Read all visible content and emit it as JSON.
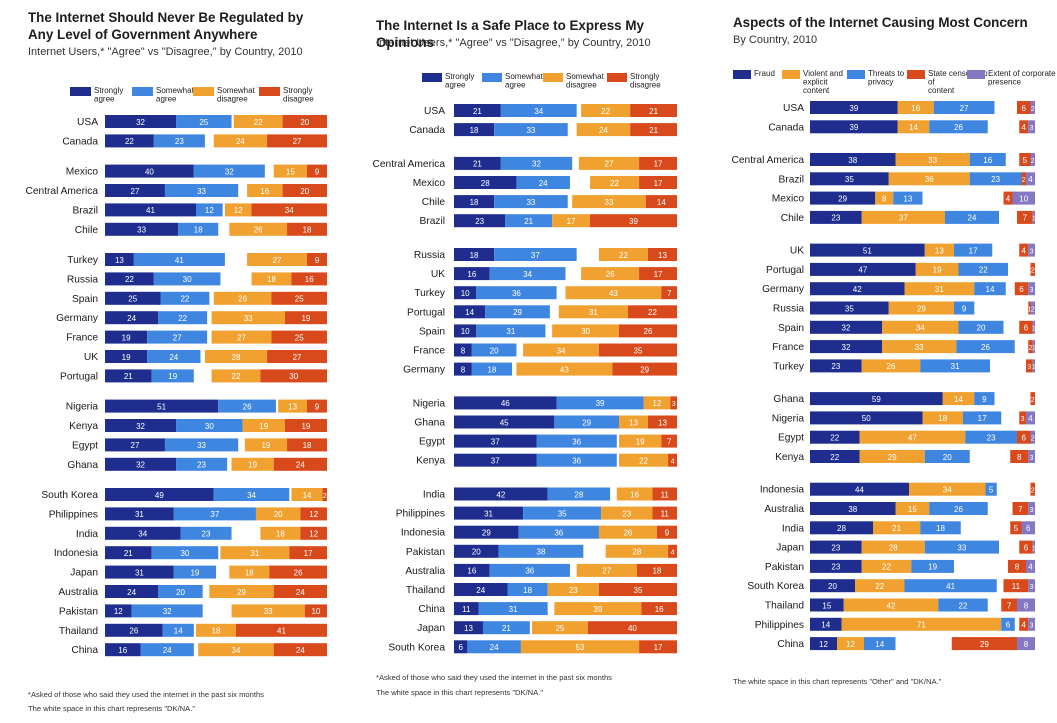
{
  "colors": {
    "strongly_agree": "#1f2d8f",
    "somewhat_agree": "#3f86e0",
    "somewhat_disagree": "#f1a130",
    "strongly_disagree": "#d84a1b",
    "fraud": "#1f2d8f",
    "violent": "#f1a130",
    "privacy": "#3f86e0",
    "censorship": "#d84a1b",
    "corporate": "#8577c2"
  },
  "chart_data": [
    {
      "type": "bar",
      "title": "The Internet Should Never Be Regulated by Any Level of Government Anywhere",
      "subtitle": "Internet Users,* \"Agree\" vs \"Disagree,\" by Country, 2010",
      "legend": [
        "Strongly agree",
        "Somewhat agree",
        "Somewhat disagree",
        "Strongly disagree"
      ],
      "footnotes": [
        "*Asked of those who said they used the internet in the past six months",
        "The white space in this chart represents \"DK/NA.\""
      ],
      "groups": [
        [
          [
            "USA",
            [
              32,
              25,
              22,
              20
            ]
          ],
          [
            "Canada",
            [
              22,
              23,
              24,
              27
            ]
          ]
        ],
        [
          [
            "Mexico",
            [
              40,
              32,
              15,
              9
            ]
          ],
          [
            "Central America",
            [
              27,
              33,
              16,
              20
            ]
          ],
          [
            "Brazil",
            [
              41,
              12,
              12,
              34
            ]
          ],
          [
            "Chile",
            [
              33,
              18,
              26,
              18
            ]
          ]
        ],
        [
          [
            "Turkey",
            [
              13,
              41,
              27,
              9
            ]
          ],
          [
            "Russia",
            [
              22,
              30,
              18,
              16
            ]
          ],
          [
            "Spain",
            [
              25,
              22,
              26,
              25
            ]
          ],
          [
            "Germany",
            [
              24,
              22,
              33,
              19
            ]
          ],
          [
            "France",
            [
              19,
              27,
              27,
              25
            ]
          ],
          [
            "UK",
            [
              19,
              24,
              28,
              27
            ]
          ],
          [
            "Portugal",
            [
              21,
              19,
              22,
              30
            ]
          ]
        ],
        [
          [
            "Nigeria",
            [
              51,
              26,
              13,
              9
            ]
          ],
          [
            "Kenya",
            [
              32,
              30,
              19,
              19
            ]
          ],
          [
            "Egypt",
            [
              27,
              33,
              19,
              18
            ]
          ],
          [
            "Ghana",
            [
              32,
              23,
              19,
              24
            ]
          ]
        ],
        [
          [
            "South Korea",
            [
              49,
              34,
              14,
              2
            ]
          ],
          [
            "Philippines",
            [
              31,
              37,
              20,
              12
            ]
          ],
          [
            "India",
            [
              34,
              23,
              18,
              12
            ]
          ],
          [
            "Indonesia",
            [
              21,
              30,
              31,
              17
            ]
          ],
          [
            "Japan",
            [
              31,
              19,
              18,
              26
            ]
          ],
          [
            "Australia",
            [
              24,
              20,
              29,
              24
            ]
          ],
          [
            "Pakistan",
            [
              12,
              32,
              33,
              10
            ]
          ],
          [
            "Thailand",
            [
              26,
              14,
              18,
              41
            ]
          ],
          [
            "China",
            [
              16,
              24,
              34,
              24
            ]
          ]
        ]
      ]
    },
    {
      "type": "bar",
      "title": "The Internet Is a Safe Place to Express My Opinions",
      "subtitle": "Internet Users,* \"Agree\" vs \"Disagree,\" by Country, 2010",
      "legend": [
        "Strongly agree",
        "Somewhat agree",
        "Somewhat disagree",
        "Strongly disagree"
      ],
      "footnotes": [
        "*Asked of those who said they used the internet in the past six months",
        "The white space in this chart represents \"DK/NA.\""
      ],
      "groups": [
        [
          [
            "USA",
            [
              21,
              34,
              22,
              21
            ]
          ],
          [
            "Canada",
            [
              18,
              33,
              24,
              21
            ]
          ]
        ],
        [
          [
            "Central America",
            [
              21,
              32,
              27,
              17
            ]
          ],
          [
            "Mexico",
            [
              28,
              24,
              22,
              17
            ]
          ],
          [
            "Chile",
            [
              18,
              33,
              33,
              14
            ]
          ],
          [
            "Brazil",
            [
              23,
              21,
              17,
              39
            ]
          ]
        ],
        [
          [
            "Russia",
            [
              18,
              37,
              22,
              13
            ]
          ],
          [
            "UK",
            [
              16,
              34,
              26,
              17
            ]
          ],
          [
            "Turkey",
            [
              10,
              36,
              43,
              7
            ]
          ],
          [
            "Portugal",
            [
              14,
              29,
              31,
              22
            ]
          ],
          [
            "Spain",
            [
              10,
              31,
              30,
              26
            ]
          ],
          [
            "France",
            [
              8,
              20,
              34,
              35
            ]
          ],
          [
            "Germany",
            [
              8,
              18,
              43,
              29
            ]
          ]
        ],
        [
          [
            "Nigeria",
            [
              46,
              39,
              12,
              3
            ]
          ],
          [
            "Ghana",
            [
              45,
              29,
              13,
              13
            ]
          ],
          [
            "Egypt",
            [
              37,
              36,
              19,
              7
            ]
          ],
          [
            "Kenya",
            [
              37,
              36,
              22,
              4
            ]
          ]
        ],
        [
          [
            "India",
            [
              42,
              28,
              16,
              11
            ]
          ],
          [
            "Philippines",
            [
              31,
              35,
              23,
              11
            ]
          ],
          [
            "Indonesia",
            [
              29,
              36,
              26,
              9
            ]
          ],
          [
            "Pakistan",
            [
              20,
              38,
              28,
              4
            ]
          ],
          [
            "Australia",
            [
              16,
              36,
              27,
              18
            ]
          ],
          [
            "Thailand",
            [
              24,
              18,
              23,
              35
            ]
          ],
          [
            "China",
            [
              11,
              31,
              39,
              16
            ]
          ],
          [
            "Japan",
            [
              13,
              21,
              25,
              40
            ]
          ],
          [
            "South Korea",
            [
              6,
              24,
              53,
              17
            ]
          ]
        ]
      ]
    },
    {
      "type": "bar",
      "title": "Aspects of the Internet Causing Most Concern",
      "subtitle": "By Country, 2010",
      "legend": [
        "Fraud",
        "Violent and explicit content",
        "Threats to privacy",
        "State censorship of content",
        "Extent of corporate presence"
      ],
      "footnotes": [
        "The white space in this chart represents \"Other\" and \"DK/NA.\""
      ],
      "groups": [
        [
          [
            "USA",
            [
              39,
              16,
              27,
              6,
              2
            ]
          ],
          [
            "Canada",
            [
              39,
              14,
              26,
              4,
              3
            ]
          ]
        ],
        [
          [
            "Central America",
            [
              38,
              33,
              16,
              5,
              2
            ]
          ],
          [
            "Brazil",
            [
              35,
              36,
              23,
              2,
              4
            ]
          ],
          [
            "Mexico",
            [
              29,
              8,
              13,
              4,
              10
            ]
          ],
          [
            "Chile",
            [
              23,
              37,
              24,
              7,
              1
            ]
          ]
        ],
        [
          [
            "UK",
            [
              51,
              13,
              17,
              4,
              3
            ]
          ],
          [
            "Portugal",
            [
              47,
              19,
              22,
              2,
              0
            ]
          ],
          [
            "Germany",
            [
              42,
              31,
              14,
              6,
              3
            ]
          ],
          [
            "Russia",
            [
              35,
              29,
              9,
              1,
              2
            ]
          ],
          [
            "Spain",
            [
              32,
              34,
              20,
              6,
              1
            ]
          ],
          [
            "France",
            [
              32,
              33,
              26,
              2,
              1
            ]
          ],
          [
            "Turkey",
            [
              23,
              26,
              31,
              3,
              1
            ]
          ]
        ],
        [
          [
            "Ghana",
            [
              59,
              14,
              9,
              2,
              0
            ]
          ],
          [
            "Nigeria",
            [
              50,
              18,
              17,
              3,
              4
            ]
          ],
          [
            "Egypt",
            [
              22,
              47,
              23,
              6,
              2
            ]
          ],
          [
            "Kenya",
            [
              22,
              29,
              20,
              8,
              3
            ]
          ]
        ],
        [
          [
            "Indonesia",
            [
              44,
              34,
              5,
              2,
              0
            ]
          ],
          [
            "Australia",
            [
              38,
              15,
              26,
              7,
              3
            ]
          ],
          [
            "India",
            [
              28,
              21,
              18,
              5,
              6
            ]
          ],
          [
            "Japan",
            [
              23,
              28,
              33,
              6,
              1
            ]
          ],
          [
            "Pakistan",
            [
              23,
              22,
              19,
              8,
              4
            ]
          ],
          [
            "South Korea",
            [
              20,
              22,
              41,
              11,
              3
            ]
          ],
          [
            "Thailand",
            [
              15,
              42,
              22,
              7,
              8
            ]
          ],
          [
            "Philippines",
            [
              14,
              71,
              6,
              4,
              3
            ]
          ],
          [
            "China",
            [
              12,
              12,
              14,
              29,
              8
            ]
          ]
        ]
      ]
    }
  ]
}
